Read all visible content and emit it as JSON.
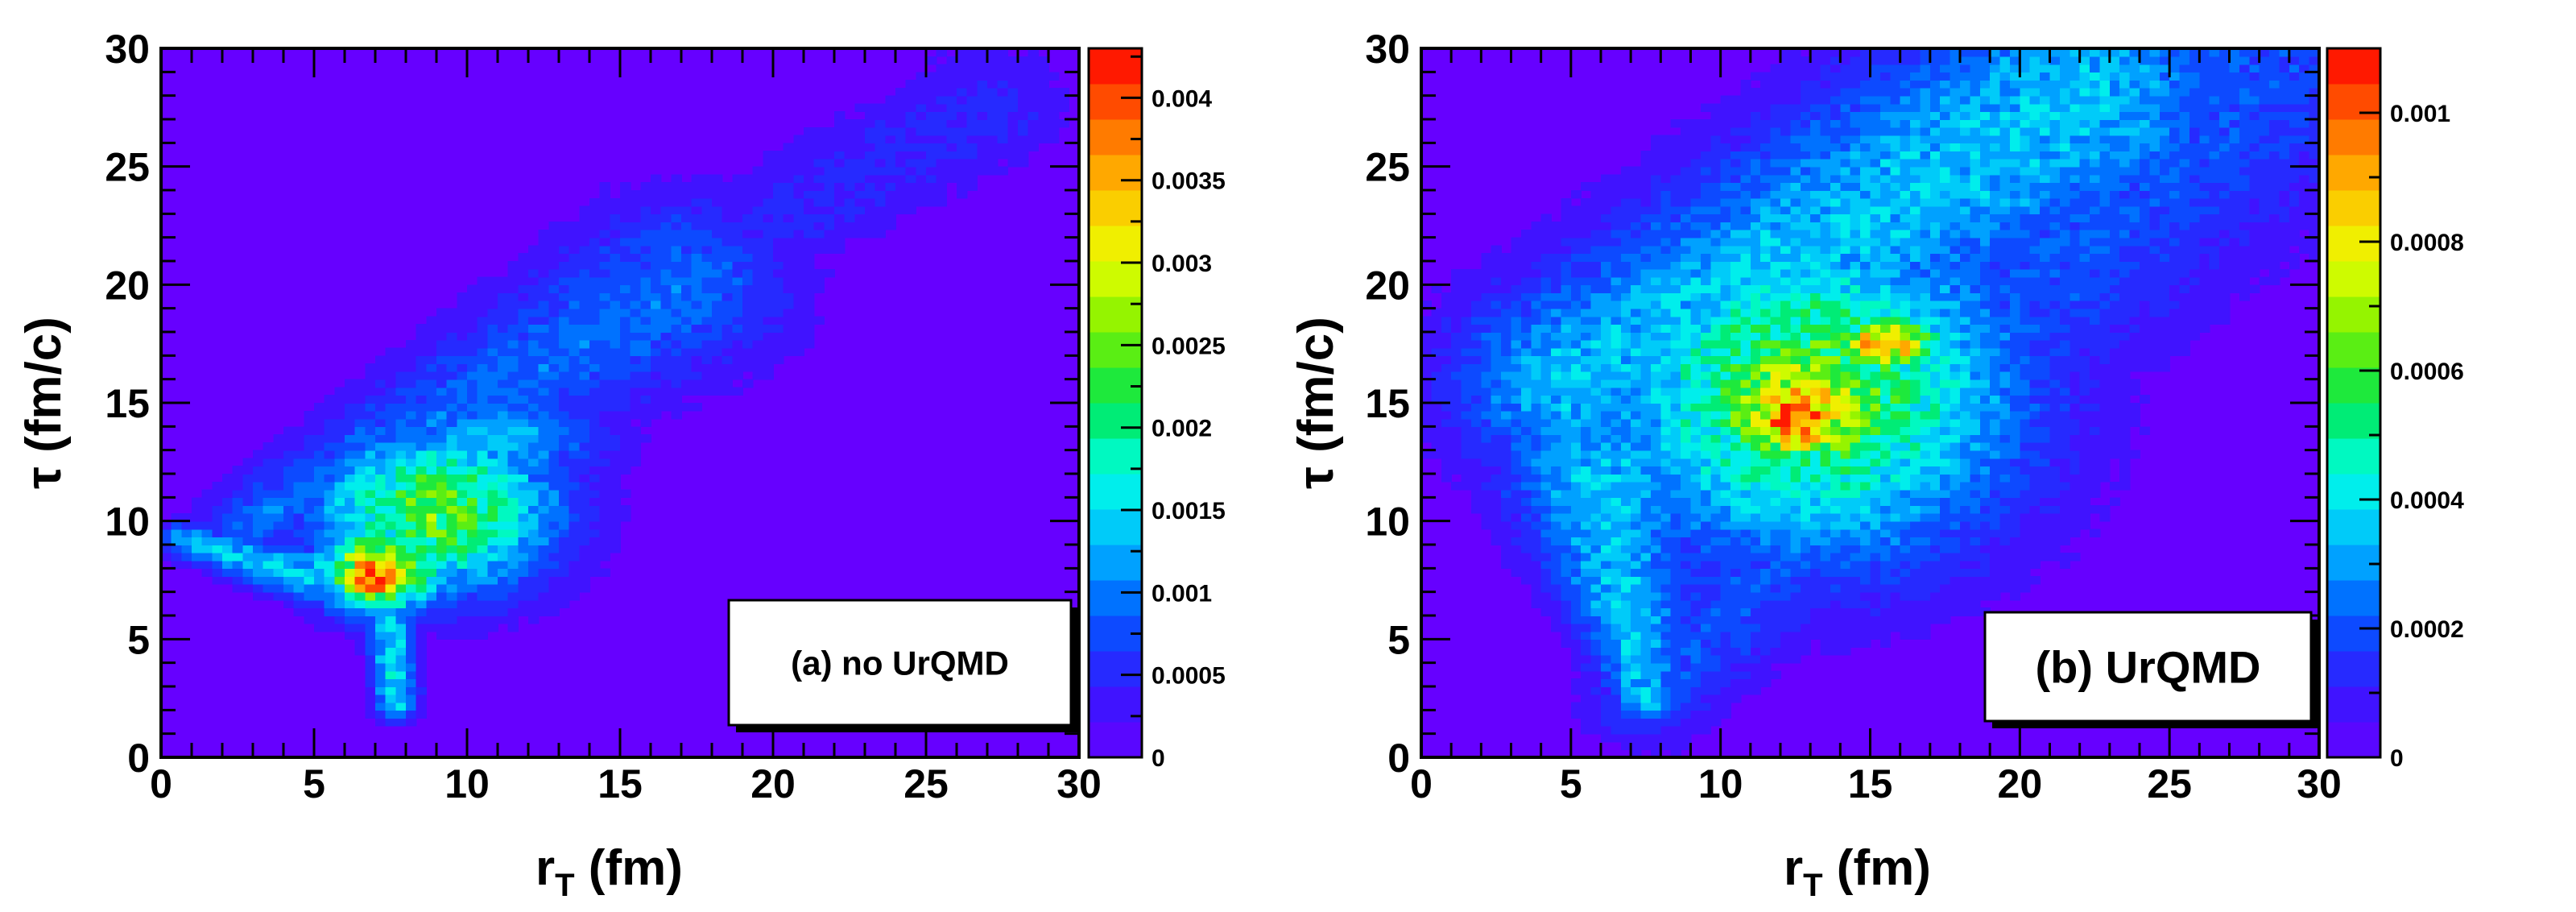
{
  "chart_data": [
    {
      "type": "heatmap",
      "panel": "a",
      "legend": "(a) no UrQMD",
      "xlabel": "r",
      "xlabel_sub": "T",
      "xlabel_unit": " (fm)",
      "ylabel": "τ (fm/c)",
      "xlim": [
        0,
        30
      ],
      "ylim": [
        0,
        30
      ],
      "x_ticks": [
        "0",
        "5",
        "10",
        "15",
        "20",
        "25",
        "30"
      ],
      "y_ticks": [
        "0",
        "5",
        "10",
        "15",
        "20",
        "25",
        "30"
      ],
      "colorbar": {
        "min": 0,
        "max": 0.0043,
        "ticks": [
          "0",
          "0.0005",
          "0.001",
          "0.0015",
          "0.002",
          "0.0025",
          "0.003",
          "0.0035",
          "0.004"
        ],
        "tick_values": [
          0,
          0.0005,
          0.001,
          0.0015,
          0.002,
          0.0025,
          0.003,
          0.0035,
          0.004
        ]
      },
      "background_color": "#6600ff",
      "features": [
        {
          "shape": "ridge",
          "x0": 0.5,
          "y0": 9.2,
          "x1": 27,
          "y1": 27.5,
          "w0": 0.6,
          "w1": 2.0,
          "v": 0.0005
        },
        {
          "shape": "ridge",
          "x0": 3,
          "y0": 10,
          "x1": 17,
          "y1": 20,
          "w0": 1.2,
          "w1": 2.8,
          "v": 0.0009
        },
        {
          "shape": "ridge",
          "x0": 0.6,
          "y0": 9.2,
          "x1": 7.0,
          "y1": 7.0,
          "w0": 0.5,
          "w1": 1.0,
          "v": 0.0014
        },
        {
          "shape": "ridge",
          "x0": 7.3,
          "y0": 7.5,
          "x1": 7.7,
          "y1": 2.2,
          "w0": 0.6,
          "w1": 0.5,
          "v": 0.0015
        },
        {
          "shape": "blob",
          "x": 9.0,
          "y": 10.5,
          "sx": 2.8,
          "sy": 2.5,
          "v": 0.0024
        },
        {
          "shape": "blob",
          "x": 7.2,
          "y": 8.0,
          "sx": 1.5,
          "sy": 1.3,
          "v": 0.0032
        },
        {
          "shape": "blob",
          "x": 7.0,
          "y": 7.7,
          "sx": 0.9,
          "sy": 0.8,
          "v": 0.0042
        },
        {
          "shape": "blob",
          "x": 11.0,
          "y": 13.5,
          "sx": 2.5,
          "sy": 1.5,
          "v": 0.0013
        }
      ]
    },
    {
      "type": "heatmap",
      "panel": "b",
      "legend": "(b) UrQMD",
      "xlabel": "r",
      "xlabel_sub": "T",
      "xlabel_unit": " (fm)",
      "ylabel": "τ (fm/c)",
      "xlim": [
        0,
        30
      ],
      "ylim": [
        0,
        30
      ],
      "x_ticks": [
        "0",
        "5",
        "10",
        "15",
        "20",
        "25",
        "30"
      ],
      "y_ticks": [
        "0",
        "5",
        "10",
        "15",
        "20",
        "25",
        "30"
      ],
      "colorbar": {
        "min": 0,
        "max": 0.0011,
        "ticks": [
          "0",
          "0.0002",
          "0.0004",
          "0.0006",
          "0.0008",
          "0.001"
        ],
        "tick_values": [
          0,
          0.0002,
          0.0004,
          0.0006,
          0.0008,
          0.001
        ]
      },
      "background_color": "#6600ff",
      "features": [
        {
          "shape": "ridge",
          "x0": 7.5,
          "y0": 2.5,
          "x1": 28,
          "y1": 30,
          "w0": 1.5,
          "w1": 4.5,
          "v": 0.0002
        },
        {
          "shape": "ridge",
          "x0": 7.5,
          "y0": 2.5,
          "x1": 6,
          "y1": 12,
          "w0": 0.8,
          "w1": 2.5,
          "v": 0.00035
        },
        {
          "shape": "ridge",
          "x0": 5,
          "y0": 16,
          "x1": 22,
          "y1": 28,
          "w0": 3.0,
          "w1": 4.0,
          "v": 0.00035
        },
        {
          "shape": "blob",
          "x": 13.0,
          "y": 15.5,
          "sx": 5.0,
          "sy": 5.0,
          "v": 0.0006
        },
        {
          "shape": "blob",
          "x": 12.8,
          "y": 15.0,
          "sx": 3.0,
          "sy": 2.5,
          "v": 0.0008
        },
        {
          "shape": "blob",
          "x": 12.5,
          "y": 14.5,
          "sx": 1.4,
          "sy": 1.6,
          "v": 0.00105
        },
        {
          "shape": "blob",
          "x": 15.5,
          "y": 17.5,
          "sx": 1.5,
          "sy": 0.9,
          "v": 0.0009
        }
      ]
    }
  ]
}
